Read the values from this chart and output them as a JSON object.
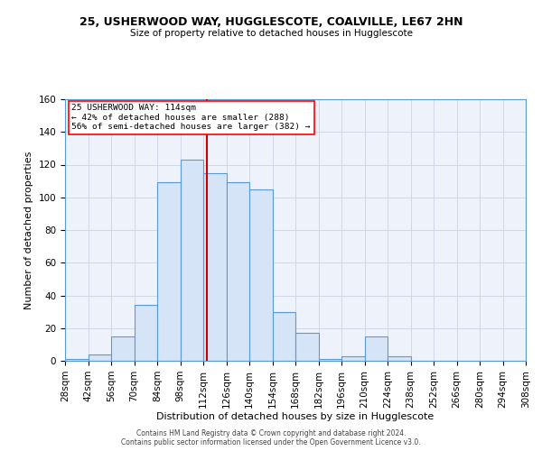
{
  "title1": "25, USHERWOOD WAY, HUGGLESCOTE, COALVILLE, LE67 2HN",
  "title2": "Size of property relative to detached houses in Hugglescote",
  "xlabel": "Distribution of detached houses by size in Hugglescote",
  "ylabel": "Number of detached properties",
  "footer1": "Contains HM Land Registry data © Crown copyright and database right 2024.",
  "footer2": "Contains public sector information licensed under the Open Government Licence v3.0.",
  "property_label": "25 USHERWOOD WAY: 114sqm",
  "annotation_line1": "← 42% of detached houses are smaller (288)",
  "annotation_line2": "56% of semi-detached houses are larger (382) →",
  "bar_left_edges": [
    28,
    42,
    56,
    70,
    84,
    98,
    112,
    126,
    140,
    154,
    168,
    182,
    196,
    210,
    224,
    238,
    252,
    266,
    280,
    294
  ],
  "bar_heights": [
    1,
    4,
    15,
    34,
    109,
    123,
    115,
    109,
    105,
    30,
    17,
    1,
    3,
    15,
    3,
    0,
    0,
    0,
    0,
    0
  ],
  "bin_width": 14,
  "bar_facecolor": "#d6e4f7",
  "bar_edgecolor": "#5b9bd5",
  "vline_x": 114,
  "vline_color": "#cc0000",
  "grid_color": "#d0d8e8",
  "bg_color": "#eef2fa",
  "xlim": [
    28,
    308
  ],
  "ylim": [
    0,
    160
  ],
  "yticks": [
    0,
    20,
    40,
    60,
    80,
    100,
    120,
    140,
    160
  ],
  "xtick_labels": [
    "28sqm",
    "42sqm",
    "56sqm",
    "70sqm",
    "84sqm",
    "98sqm",
    "112sqm",
    "126sqm",
    "140sqm",
    "154sqm",
    "168sqm",
    "182sqm",
    "196sqm",
    "210sqm",
    "224sqm",
    "238sqm",
    "252sqm",
    "266sqm",
    "280sqm",
    "294sqm",
    "308sqm"
  ],
  "xtick_positions": [
    28,
    42,
    56,
    70,
    84,
    98,
    112,
    126,
    140,
    154,
    168,
    182,
    196,
    210,
    224,
    238,
    252,
    266,
    280,
    294,
    308
  ]
}
